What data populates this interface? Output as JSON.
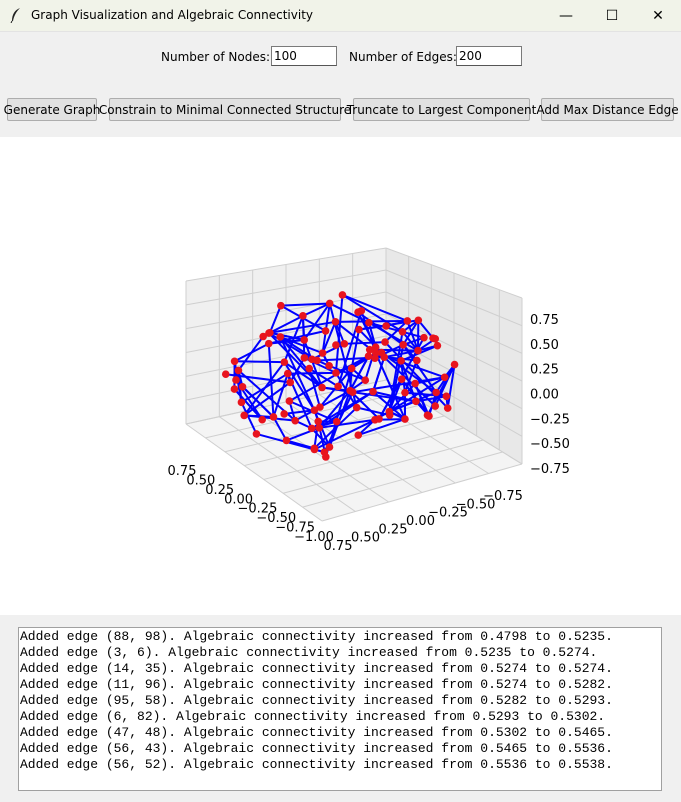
{
  "window": {
    "title": "Graph Visualization and Algebraic Connectivity",
    "controls": {
      "minimize": "—",
      "maximize": "☐",
      "close": "✕"
    }
  },
  "inputs": {
    "nodes_label": "Number of Nodes:",
    "nodes_value": "100",
    "edges_label": "Number of Edges:",
    "edges_value": "200"
  },
  "buttons": {
    "generate": "Generate Graph",
    "constrain": "Constrain to Minimal Connected Structure",
    "truncate": "Truncate to Largest Component",
    "add_edge": "Add Max Distance Edge"
  },
  "chart_data": {
    "type": "scatter",
    "projection": "3d",
    "node_color": "#e8141e",
    "edge_color": "#0000ff",
    "node_count": 100,
    "edge_count": 200,
    "xlim": [
      -1.0,
      0.75
    ],
    "ylim": [
      -0.75,
      0.75
    ],
    "zlim": [
      -0.75,
      0.75
    ],
    "x_ticks": [
      "0.75",
      "0.50",
      "0.25",
      "0.00",
      "−0.25",
      "−0.50",
      "−0.75",
      "−1.00"
    ],
    "y_ticks": [
      "0.75",
      "0.50",
      "0.25",
      "0.00",
      "−0.25",
      "−0.50",
      "−0.75"
    ],
    "z_ticks": [
      "0.75",
      "0.50",
      "0.25",
      "0.00",
      "−0.25",
      "−0.50",
      "−0.75"
    ],
    "grid": true
  },
  "log": {
    "lines": [
      "Added edge (88, 98). Algebraic connectivity increased from 0.4798 to 0.5235.",
      "Added edge (3, 6). Algebraic connectivity increased from 0.5235 to 0.5274.",
      "Added edge (14, 35). Algebraic connectivity increased from 0.5274 to 0.5274.",
      "Added edge (11, 96). Algebraic connectivity increased from 0.5274 to 0.5282.",
      "Added edge (95, 58). Algebraic connectivity increased from 0.5282 to 0.5293.",
      "Added edge (6, 82). Algebraic connectivity increased from 0.5293 to 0.5302.",
      "Added edge (47, 48). Algebraic connectivity increased from 0.5302 to 0.5465.",
      "Added edge (56, 43). Algebraic connectivity increased from 0.5465 to 0.5536.",
      "Added edge (56, 52). Algebraic connectivity increased from 0.5536 to 0.5538."
    ]
  }
}
